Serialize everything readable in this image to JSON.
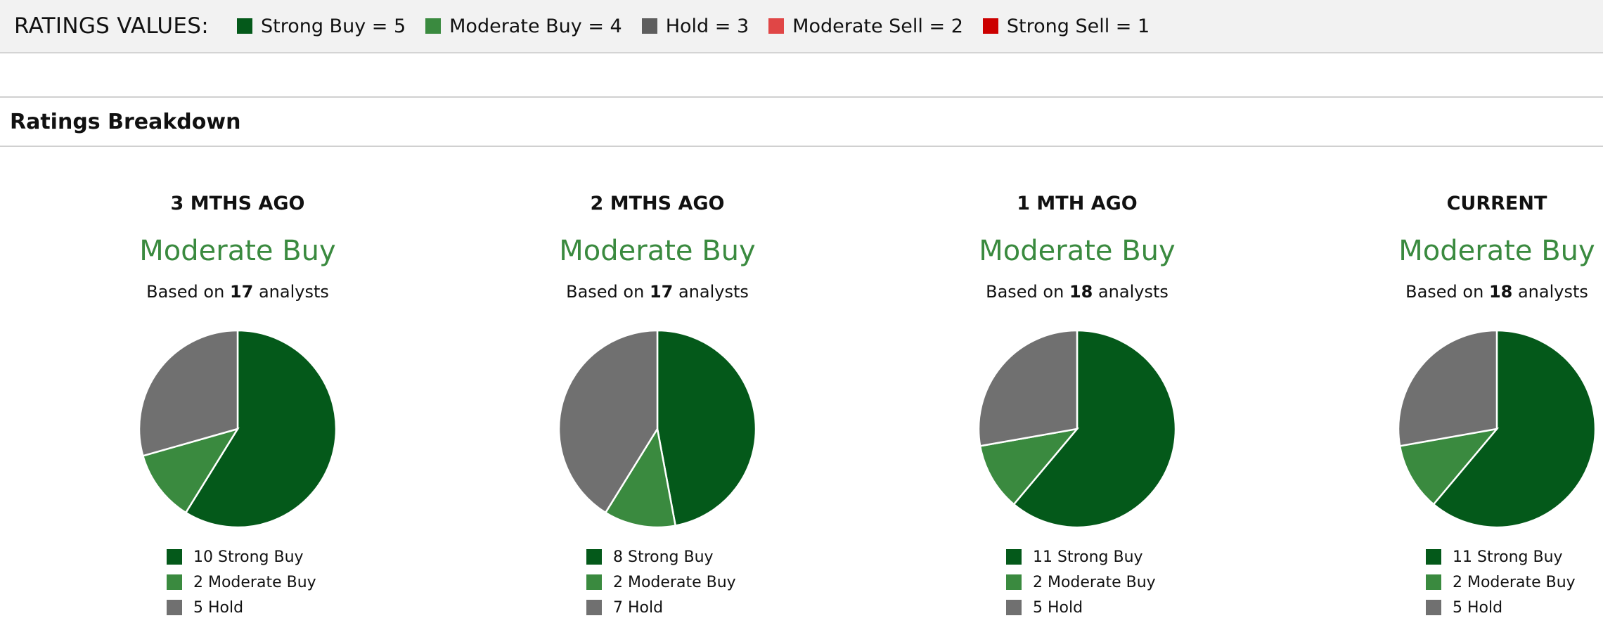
{
  "ratings_legend": {
    "title": "RATINGS VALUES:",
    "items": [
      {
        "label": "Strong Buy = 5",
        "color": "#04591a"
      },
      {
        "label": "Moderate Buy = 4",
        "color": "#3a8a3f"
      },
      {
        "label": "Hold = 3",
        "color": "#5e5e5e"
      },
      {
        "label": "Moderate Sell = 2",
        "color": "#e04646"
      },
      {
        "label": "Strong Sell = 1",
        "color": "#cc0000"
      }
    ]
  },
  "section_title": "Ratings Breakdown",
  "colors": {
    "Strong Buy": "#04591a",
    "Moderate Buy": "#3a8a3f",
    "Hold": "#707070"
  },
  "based_on_prefix": "Based on",
  "based_on_suffix": "analysts",
  "chart_data": [
    {
      "type": "pie",
      "title": "3 MTHS AGO",
      "consensus": "Moderate Buy",
      "analysts": "17",
      "categories": [
        "Strong Buy",
        "Moderate Buy",
        "Hold"
      ],
      "values": [
        10,
        2,
        5
      ],
      "legend": [
        "10 Strong Buy",
        "2 Moderate Buy",
        "5 Hold"
      ]
    },
    {
      "type": "pie",
      "title": "2 MTHS AGO",
      "consensus": "Moderate Buy",
      "analysts": "17",
      "categories": [
        "Strong Buy",
        "Moderate Buy",
        "Hold"
      ],
      "values": [
        8,
        2,
        7
      ],
      "legend": [
        "8 Strong Buy",
        "2 Moderate Buy",
        "7 Hold"
      ]
    },
    {
      "type": "pie",
      "title": "1 MTH AGO",
      "consensus": "Moderate Buy",
      "analysts": "18",
      "categories": [
        "Strong Buy",
        "Moderate Buy",
        "Hold"
      ],
      "values": [
        11,
        2,
        5
      ],
      "legend": [
        "11 Strong Buy",
        "2 Moderate Buy",
        "5 Hold"
      ]
    },
    {
      "type": "pie",
      "title": "CURRENT",
      "consensus": "Moderate Buy",
      "analysts": "18",
      "categories": [
        "Strong Buy",
        "Moderate Buy",
        "Hold"
      ],
      "values": [
        11,
        2,
        5
      ],
      "legend": [
        "11 Strong Buy",
        "2 Moderate Buy",
        "5 Hold"
      ]
    }
  ]
}
